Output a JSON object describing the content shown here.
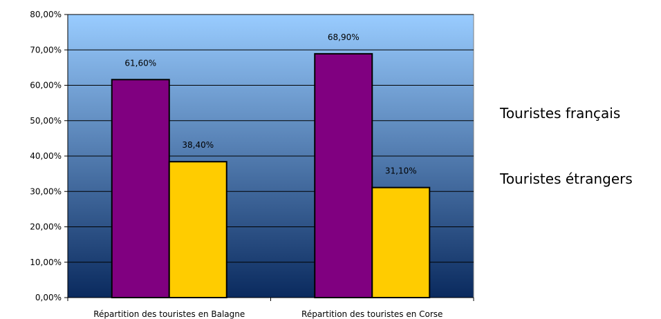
{
  "chart_data": {
    "type": "bar",
    "categories": [
      "Répartition des touristes en Balagne",
      "Répartition des touristes en Corse"
    ],
    "series": [
      {
        "name": "Touristes français",
        "values": [
          61.6,
          68.9
        ],
        "labels": [
          "61,60%",
          "68,90%"
        ],
        "color": "#800080"
      },
      {
        "name": "Touristes étrangers",
        "values": [
          38.4,
          31.1
        ],
        "labels": [
          "38,40%",
          "31,10%"
        ],
        "color": "#FFCC00"
      }
    ],
    "ylim": [
      0,
      80
    ],
    "yticks": [
      0,
      10,
      20,
      30,
      40,
      50,
      60,
      70,
      80
    ],
    "ytick_labels": [
      "0,00%",
      "10,00%",
      "20,00%",
      "30,00%",
      "40,00%",
      "50,00%",
      "60,00%",
      "70,00%",
      "80,00%"
    ],
    "grid": true,
    "legend_position": "right",
    "background_gradient": [
      "#99CCFF",
      "#0A2A5E"
    ]
  }
}
